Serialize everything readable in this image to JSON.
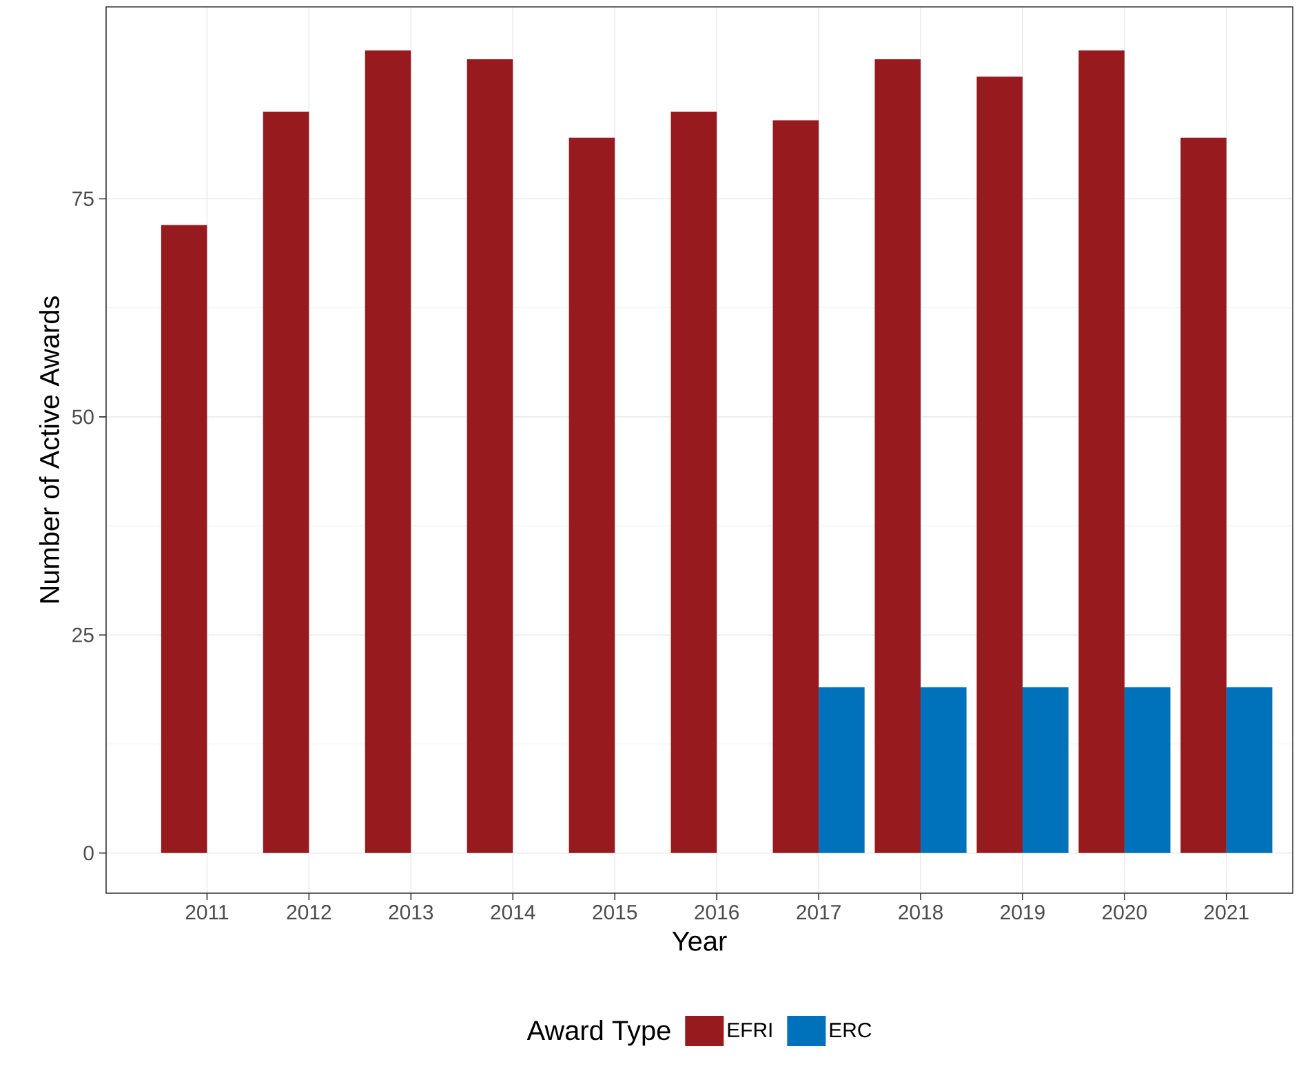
{
  "chart_data": {
    "type": "bar",
    "xlabel": "Year",
    "ylabel": "Number of Active Awards",
    "legend_title": "Award Type",
    "categories": [
      "2011",
      "2012",
      "2013",
      "2014",
      "2015",
      "2016",
      "2017",
      "2018",
      "2019",
      "2020",
      "2021"
    ],
    "series": [
      {
        "name": "EFRI",
        "color": "#971b1e",
        "values": [
          72,
          85,
          92,
          91,
          82,
          85,
          84,
          91,
          89,
          92,
          82
        ]
      },
      {
        "name": "ERC",
        "color": "#0072bc",
        "values": [
          null,
          null,
          null,
          null,
          null,
          null,
          19,
          19,
          19,
          19,
          19
        ]
      }
    ],
    "ylim": [
      -4.6,
      97
    ],
    "yticks": [
      0,
      25,
      50,
      75
    ],
    "grid": true,
    "legend": "bottom"
  }
}
